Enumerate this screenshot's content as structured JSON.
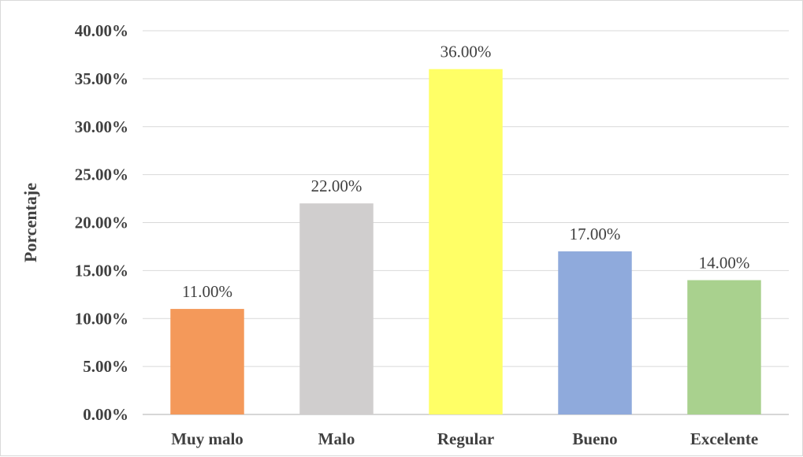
{
  "chart_data": {
    "type": "bar",
    "ylabel": "Porcentaje",
    "ylim": [
      0,
      40
    ],
    "grid": true,
    "ytick_values": [
      0,
      5,
      10,
      15,
      20,
      25,
      30,
      35,
      40
    ],
    "ytick_labels": [
      "0.00%",
      "5.00%",
      "10.00%",
      "15.00%",
      "20.00%",
      "25.00%",
      "30.00%",
      "35.00%",
      "40.00%"
    ],
    "categories": [
      "Muy malo",
      "Malo",
      "Regular",
      "Bueno",
      "Excelente"
    ],
    "values": [
      11,
      22,
      36,
      17,
      14
    ],
    "data_labels": [
      "11.00%",
      "22.00%",
      "36.00%",
      "17.00%",
      "14.00%"
    ],
    "colors": [
      "#f4995a",
      "#d0cece",
      "#ffff66",
      "#8faadc",
      "#a9d18e"
    ]
  }
}
